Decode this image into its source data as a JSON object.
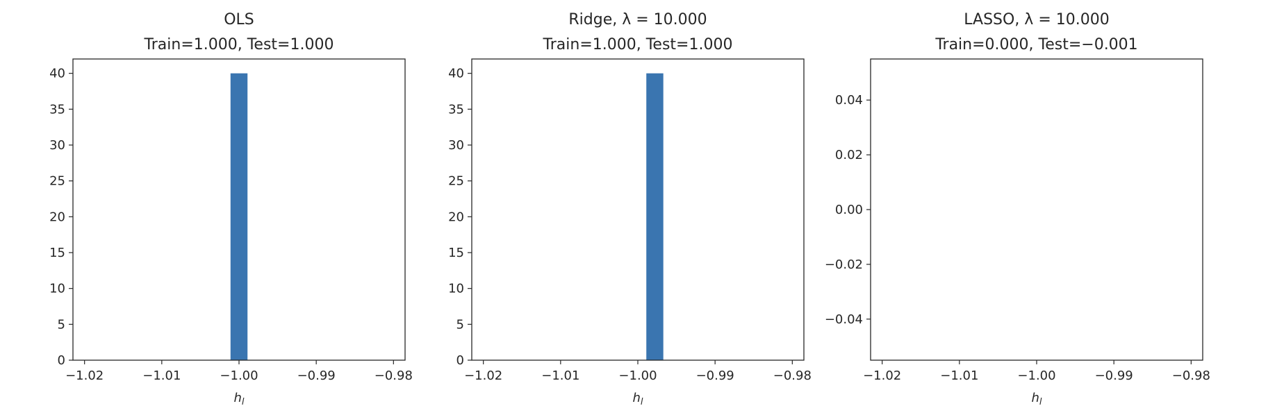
{
  "bar_color": "#3a75b0",
  "axis_color": "#262626",
  "chart_data": [
    {
      "type": "bar",
      "title": "OLS",
      "subtitle": "Train=1.000, Test=1.000",
      "xlabel": "h_l",
      "ylabel": "",
      "xlim": [
        -1.0215,
        -0.9785
      ],
      "ylim": [
        0,
        42
      ],
      "xticks": [
        -1.02,
        -1.01,
        -1.0,
        -0.99,
        -0.98
      ],
      "xtick_labels": [
        "−1.02",
        "−1.01",
        "−1.00",
        "−0.99",
        "−0.98"
      ],
      "yticks": [
        0,
        5,
        10,
        15,
        20,
        25,
        30,
        35,
        40
      ],
      "ytick_labels": [
        "0",
        "5",
        "10",
        "15",
        "20",
        "25",
        "30",
        "35",
        "40"
      ],
      "bars": [
        {
          "x0": -1.0011,
          "x1": -0.9989,
          "value": 40
        }
      ]
    },
    {
      "type": "bar",
      "title": "Ridge, λ = 10.000",
      "subtitle": "Train=1.000, Test=1.000",
      "xlabel": "h_l",
      "ylabel": "",
      "xlim": [
        -1.0215,
        -0.9785
      ],
      "ylim": [
        0,
        42
      ],
      "xticks": [
        -1.02,
        -1.01,
        -1.0,
        -0.99,
        -0.98
      ],
      "xtick_labels": [
        "−1.02",
        "−1.01",
        "−1.00",
        "−0.99",
        "−0.98"
      ],
      "yticks": [
        0,
        5,
        10,
        15,
        20,
        25,
        30,
        35,
        40
      ],
      "ytick_labels": [
        "0",
        "5",
        "10",
        "15",
        "20",
        "25",
        "30",
        "35",
        "40"
      ],
      "bars": [
        {
          "x0": -0.9989,
          "x1": -0.9967,
          "value": 40
        }
      ]
    },
    {
      "type": "bar",
      "title": "LASSO, λ = 10.000",
      "subtitle": "Train=0.000, Test=−0.001",
      "xlabel": "h_l",
      "ylabel": "",
      "xlim": [
        -1.0215,
        -0.9785
      ],
      "ylim": [
        -0.055,
        0.055
      ],
      "xticks": [
        -1.02,
        -1.01,
        -1.0,
        -0.99,
        -0.98
      ],
      "xtick_labels": [
        "−1.02",
        "−1.01",
        "−1.00",
        "−0.99",
        "−0.98"
      ],
      "yticks": [
        -0.04,
        -0.02,
        0.0,
        0.02,
        0.04
      ],
      "ytick_labels": [
        "−0.04",
        "−0.02",
        "0.00",
        "0.02",
        "0.04"
      ],
      "bars": []
    }
  ]
}
